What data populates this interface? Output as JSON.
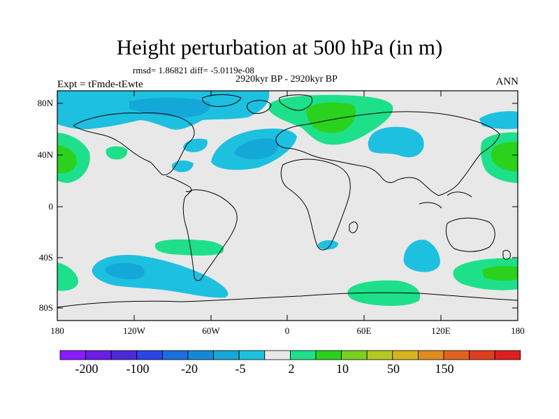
{
  "title": "Height perturbation at 500 hPa (in m)",
  "stats": "rmsd= 1.86821 diff= -5.0119e-08",
  "period": "2920kyr BP - 2920kyr BP",
  "experiment": "Expt = tFmde-tEwte",
  "season": "ANN",
  "y_ticks": [
    "80N",
    "40N",
    "0",
    "40S",
    "80S"
  ],
  "x_ticks": [
    "180",
    "120W",
    "60W",
    "0",
    "60E",
    "120E",
    "180"
  ],
  "colorbar": {
    "labels": [
      "-200",
      "-100",
      "-20",
      "-5",
      "2",
      "10",
      "50",
      "150"
    ],
    "colors": [
      "#8c1aff",
      "#6a1ee8",
      "#4a2ad6",
      "#2a46e6",
      "#1a6ee0",
      "#148ad6",
      "#14a8d8",
      "#1ec0e0",
      "#e8e8e8",
      "#1ee08a",
      "#2ad21e",
      "#78d21e",
      "#b4c81e",
      "#d6b41e",
      "#e08c1e",
      "#e0641e",
      "#e03c1e",
      "#e01e1e"
    ]
  },
  "legend_colors": {
    "ocean_land_background": "#e8e8e8",
    "negative_light": "#1ec0e0",
    "negative_medium": "#14a8d8",
    "positive_light": "#1ee08a",
    "positive_medium": "#2ad21e"
  }
}
